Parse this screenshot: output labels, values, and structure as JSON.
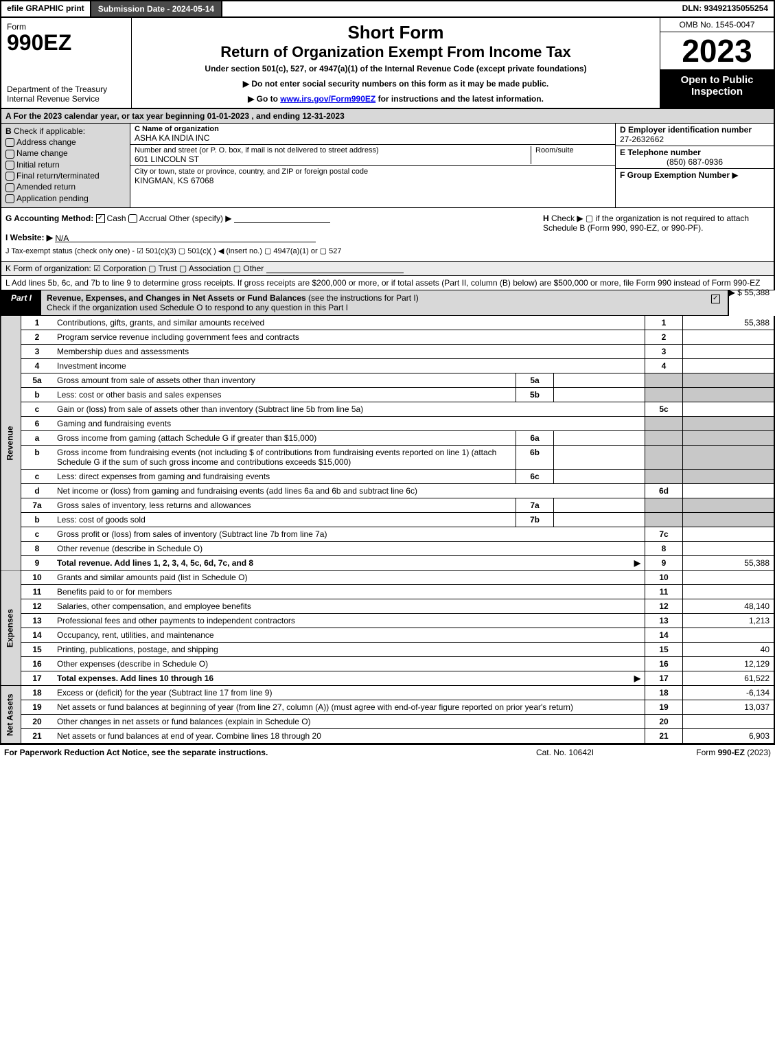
{
  "colors": {
    "header_dark": "#4a4a4a",
    "part_label_bg": "#000000",
    "gray_bg": "#d8d8d8",
    "shaded_cell": "#c8c8c8",
    "link": "#0000ee"
  },
  "top": {
    "efile": "efile GRAPHIC print",
    "submission": "Submission Date - 2024-05-14",
    "dln": "DLN: 93492135055254"
  },
  "header": {
    "form_word": "Form",
    "form_no": "990EZ",
    "dept": "Department of the Treasury\nInternal Revenue Service",
    "short_form": "Short Form",
    "title": "Return of Organization Exempt From Income Tax",
    "under": "Under section 501(c), 527, or 4947(a)(1) of the Internal Revenue Code (except private foundations)",
    "do_not": "▶ Do not enter social security numbers on this form as it may be made public.",
    "goto_pre": "▶ Go to ",
    "goto_link": "www.irs.gov/Form990EZ",
    "goto_post": " for instructions and the latest information.",
    "omb": "OMB No. 1545-0047",
    "year": "2023",
    "open_public": "Open to Public Inspection"
  },
  "rowA": "A  For the 2023 calendar year, or tax year beginning 01-01-2023 , and ending 12-31-2023",
  "sectionB": {
    "title": "B",
    "subtitle": "Check if applicable:",
    "items": [
      "Address change",
      "Name change",
      "Initial return",
      "Final return/terminated",
      "Amended return",
      "Application pending"
    ]
  },
  "sectionC": {
    "c_label": "C Name of organization",
    "c_value": "ASHA KA INDIA INC",
    "street_label": "Number and street (or P. O. box, if mail is not delivered to street address)",
    "street_value": "601 LINCOLN ST",
    "room_label": "Room/suite",
    "city_label": "City or town, state or province, country, and ZIP or foreign postal code",
    "city_value": "KINGMAN, KS  67068"
  },
  "sectionD": {
    "d_label": "D Employer identification number",
    "d_value": "27-2632662",
    "e_label": "E Telephone number",
    "e_value": "(850) 687-0936",
    "f_label": "F Group Exemption Number",
    "f_arrow": "▶"
  },
  "rowG": {
    "label": "G Accounting Method:",
    "cash": "Cash",
    "accrual": "Accrual",
    "other": "Other (specify) ▶",
    "h_label": "H",
    "h_text": "Check ▶  ▢  if the organization is not required to attach Schedule B (Form 990, 990-EZ, or 990-PF)."
  },
  "rowI": {
    "prefix": "I Website: ▶",
    "value": "N/A"
  },
  "rowJ": "J Tax-exempt status (check only one) - ☑ 501(c)(3)  ▢ 501(c)(  ) ◀ (insert no.)  ▢ 4947(a)(1) or  ▢ 527",
  "rowK": "K Form of organization:  ☑ Corporation  ▢ Trust  ▢ Association  ▢ Other",
  "rowL": {
    "text": "L Add lines 5b, 6c, and 7b to line 9 to determine gross receipts. If gross receipts are $200,000 or more, or if total assets (Part II, column (B) below) are $500,000 or more, file Form 990 instead of Form 990-EZ",
    "arrow": "▶ $",
    "amount": "55,388"
  },
  "part1": {
    "label": "Part I",
    "title_bold": "Revenue, Expenses, and Changes in Net Assets or Fund Balances",
    "title_rest": " (see the instructions for Part I)",
    "subtitle": "Check if the organization used Schedule O to respond to any question in this Part I",
    "checked": "☑"
  },
  "sections": {
    "revenue": "Revenue",
    "expenses": "Expenses",
    "netassets": "Net Assets"
  },
  "lines": [
    {
      "sec": "rev",
      "no": "1",
      "desc": "Contributions, gifts, grants, and similar amounts received",
      "code": "1",
      "val": "55,388"
    },
    {
      "sec": "rev",
      "no": "2",
      "desc": "Program service revenue including government fees and contracts",
      "code": "2",
      "val": ""
    },
    {
      "sec": "rev",
      "no": "3",
      "desc": "Membership dues and assessments",
      "code": "3",
      "val": ""
    },
    {
      "sec": "rev",
      "no": "4",
      "desc": "Investment income",
      "code": "4",
      "val": ""
    },
    {
      "sec": "rev",
      "no": "5a",
      "desc": "Gross amount from sale of assets other than inventory",
      "icode": "5a",
      "ival": "",
      "code": "",
      "val": "",
      "shaded": true
    },
    {
      "sec": "rev",
      "no": "b",
      "desc": "Less: cost or other basis and sales expenses",
      "icode": "5b",
      "ival": "",
      "code": "",
      "val": "",
      "shaded": true
    },
    {
      "sec": "rev",
      "no": "c",
      "desc": "Gain or (loss) from sale of assets other than inventory (Subtract line 5b from line 5a)",
      "code": "5c",
      "val": ""
    },
    {
      "sec": "rev",
      "no": "6",
      "desc": "Gaming and fundraising events",
      "code": "",
      "val": "",
      "shaded": true,
      "noouter": true
    },
    {
      "sec": "rev",
      "no": "a",
      "desc": "Gross income from gaming (attach Schedule G if greater than $15,000)",
      "icode": "6a",
      "ival": "",
      "shaded": true
    },
    {
      "sec": "rev",
      "no": "b",
      "desc": "Gross income from fundraising events (not including $                 of contributions from fundraising events reported on line 1) (attach Schedule G if the sum of such gross income and contributions exceeds $15,000)",
      "icode": "6b",
      "ival": "",
      "shaded": true
    },
    {
      "sec": "rev",
      "no": "c",
      "desc": "Less: direct expenses from gaming and fundraising events",
      "icode": "6c",
      "ival": "",
      "shaded": true
    },
    {
      "sec": "rev",
      "no": "d",
      "desc": "Net income or (loss) from gaming and fundraising events (add lines 6a and 6b and subtract line 6c)",
      "code": "6d",
      "val": ""
    },
    {
      "sec": "rev",
      "no": "7a",
      "desc": "Gross sales of inventory, less returns and allowances",
      "icode": "7a",
      "ival": "",
      "shaded": true
    },
    {
      "sec": "rev",
      "no": "b",
      "desc": "Less: cost of goods sold",
      "icode": "7b",
      "ival": "",
      "shaded": true
    },
    {
      "sec": "rev",
      "no": "c",
      "desc": "Gross profit or (loss) from sales of inventory (Subtract line 7b from line 7a)",
      "code": "7c",
      "val": ""
    },
    {
      "sec": "rev",
      "no": "8",
      "desc": "Other revenue (describe in Schedule O)",
      "code": "8",
      "val": ""
    },
    {
      "sec": "rev",
      "no": "9",
      "desc": "Total revenue. Add lines 1, 2, 3, 4, 5c, 6d, 7c, and 8",
      "code": "9",
      "val": "55,388",
      "bold": true,
      "arrow": true
    },
    {
      "sec": "exp",
      "no": "10",
      "desc": "Grants and similar amounts paid (list in Schedule O)",
      "code": "10",
      "val": ""
    },
    {
      "sec": "exp",
      "no": "11",
      "desc": "Benefits paid to or for members",
      "code": "11",
      "val": ""
    },
    {
      "sec": "exp",
      "no": "12",
      "desc": "Salaries, other compensation, and employee benefits",
      "code": "12",
      "val": "48,140"
    },
    {
      "sec": "exp",
      "no": "13",
      "desc": "Professional fees and other payments to independent contractors",
      "code": "13",
      "val": "1,213"
    },
    {
      "sec": "exp",
      "no": "14",
      "desc": "Occupancy, rent, utilities, and maintenance",
      "code": "14",
      "val": ""
    },
    {
      "sec": "exp",
      "no": "15",
      "desc": "Printing, publications, postage, and shipping",
      "code": "15",
      "val": "40"
    },
    {
      "sec": "exp",
      "no": "16",
      "desc": "Other expenses (describe in Schedule O)",
      "code": "16",
      "val": "12,129"
    },
    {
      "sec": "exp",
      "no": "17",
      "desc": "Total expenses. Add lines 10 through 16",
      "code": "17",
      "val": "61,522",
      "bold": true,
      "arrow": true
    },
    {
      "sec": "net",
      "no": "18",
      "desc": "Excess or (deficit) for the year (Subtract line 17 from line 9)",
      "code": "18",
      "val": "-6,134"
    },
    {
      "sec": "net",
      "no": "19",
      "desc": "Net assets or fund balances at beginning of year (from line 27, column (A)) (must agree with end-of-year figure reported on prior year's return)",
      "code": "19",
      "val": "13,037"
    },
    {
      "sec": "net",
      "no": "20",
      "desc": "Other changes in net assets or fund balances (explain in Schedule O)",
      "code": "20",
      "val": ""
    },
    {
      "sec": "net",
      "no": "21",
      "desc": "Net assets or fund balances at end of year. Combine lines 18 through 20",
      "code": "21",
      "val": "6,903"
    }
  ],
  "footer": {
    "left": "For Paperwork Reduction Act Notice, see the separate instructions.",
    "mid": "Cat. No. 10642I",
    "right_pre": "Form ",
    "right_form": "990-EZ",
    "right_post": " (2023)"
  }
}
